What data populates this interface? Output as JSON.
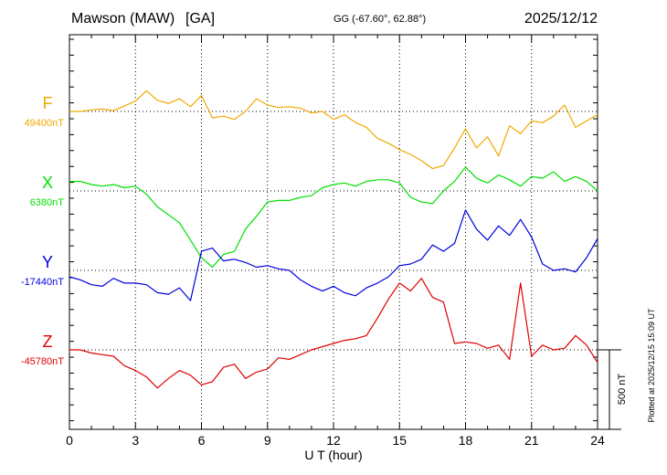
{
  "chart_data": {
    "type": "line",
    "station": "Mawson (MAW)",
    "tag": "[GA]",
    "coords": "GG (-67.60°,  62.88°)",
    "date": "2025/12/12",
    "xlabel": "U T (hour)",
    "xlim": [
      0,
      24
    ],
    "x_ticks": [
      "0",
      "3",
      "6",
      "9",
      "12",
      "15",
      "18",
      "21",
      "24"
    ],
    "grid": true,
    "scale_bar_label": "500 nT",
    "scale_bar_nT": 500,
    "side_note": "Plotted at 2025/12/15 15:09 UT",
    "x": [
      0,
      0.5,
      1,
      1.5,
      2,
      2.5,
      3,
      3.5,
      4,
      4.5,
      5,
      5.5,
      6,
      6.5,
      7,
      7.5,
      8,
      8.5,
      9,
      9.5,
      10,
      10.5,
      11,
      11.5,
      12,
      12.5,
      13,
      13.5,
      14,
      14.5,
      15,
      15.5,
      16,
      16.5,
      17,
      17.5,
      18,
      18.5,
      19,
      19.5,
      20,
      20.5,
      21,
      21.5,
      22,
      22.5,
      23,
      23.5,
      24
    ],
    "series": [
      {
        "name": "F",
        "label": "F",
        "baseline": "49400nT",
        "color": "#f0a800",
        "values": [
          0,
          0,
          10,
          15,
          5,
          35,
          65,
          130,
          70,
          50,
          80,
          30,
          100,
          -40,
          -30,
          -50,
          0,
          80,
          40,
          25,
          30,
          20,
          -10,
          0,
          -50,
          -20,
          -70,
          -100,
          -170,
          -200,
          -240,
          -270,
          -310,
          -360,
          -340,
          -230,
          -110,
          -230,
          -160,
          -280,
          -90,
          -140,
          -60,
          -70,
          -30,
          40,
          -100,
          -60,
          -20
        ]
      },
      {
        "name": "X",
        "label": "X",
        "baseline": "6380nT",
        "color": "#00e000",
        "values": [
          60,
          60,
          40,
          30,
          40,
          20,
          30,
          -20,
          -100,
          -150,
          -200,
          -310,
          -420,
          -480,
          -400,
          -380,
          -240,
          -160,
          -70,
          -60,
          -60,
          -40,
          -30,
          20,
          40,
          50,
          30,
          60,
          70,
          70,
          50,
          -40,
          -70,
          -80,
          0,
          60,
          150,
          80,
          50,
          100,
          70,
          30,
          90,
          80,
          120,
          60,
          90,
          60,
          0
        ]
      },
      {
        "name": "Y",
        "label": "Y",
        "baseline": "-17440nT",
        "color": "#0000dd",
        "values": [
          -40,
          -60,
          -90,
          -100,
          -50,
          -80,
          -80,
          -90,
          -140,
          -150,
          -110,
          -190,
          120,
          140,
          60,
          70,
          50,
          20,
          30,
          10,
          0,
          -60,
          -100,
          -130,
          -100,
          -140,
          -160,
          -110,
          -80,
          -40,
          30,
          40,
          70,
          160,
          120,
          170,
          380,
          260,
          190,
          280,
          220,
          320,
          210,
          40,
          0,
          10,
          -10,
          80,
          200
        ]
      },
      {
        "name": "Z",
        "label": "Z",
        "baseline": "-45780nT",
        "color": "#e00000",
        "values": [
          0,
          0,
          -20,
          -30,
          -40,
          -100,
          -130,
          -170,
          -240,
          -180,
          -130,
          -160,
          -220,
          -200,
          -110,
          -90,
          -180,
          -140,
          -120,
          -50,
          -60,
          -30,
          0,
          20,
          40,
          60,
          70,
          90,
          200,
          320,
          420,
          370,
          450,
          330,
          300,
          40,
          50,
          40,
          10,
          30,
          -60,
          420,
          -40,
          30,
          0,
          10,
          90,
          30,
          -80
        ]
      }
    ]
  }
}
